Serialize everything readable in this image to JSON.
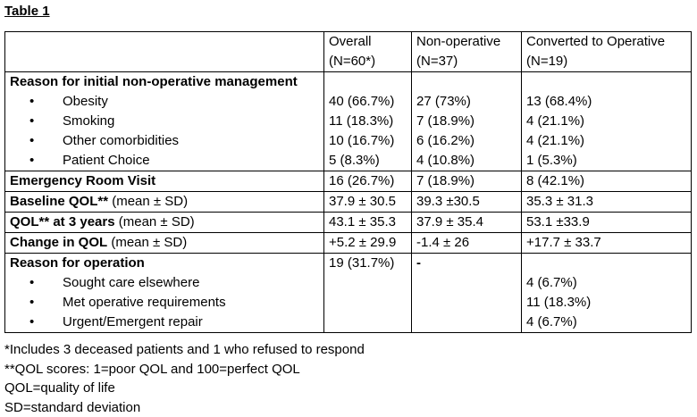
{
  "title": "Table 1",
  "header": {
    "c1": [
      "Overall",
      "(N=60*)"
    ],
    "c2": [
      "Non-operative",
      "(N=37)"
    ],
    "c3": [
      "Converted to Operative",
      "(N=19)"
    ]
  },
  "reason_initial": {
    "label": "Reason for initial non-operative management",
    "items": [
      {
        "label": "Obesity",
        "overall": "40 (66.7%)",
        "nonop": "27 (73%)",
        "conv": "13 (68.4%)"
      },
      {
        "label": "Smoking",
        "overall": "11 (18.3%)",
        "nonop": "7 (18.9%)",
        "conv": "4 (21.1%)"
      },
      {
        "label": "Other comorbidities",
        "overall": "10 (16.7%)",
        "nonop": "6 (16.2%)",
        "conv": "4 (21.1%)"
      },
      {
        "label": "Patient Choice",
        "overall": "5  (8.3%)",
        "nonop": "4 (10.8%)",
        "conv": "1 (5.3%)"
      }
    ]
  },
  "er_visit": {
    "label": "Emergency Room Visit",
    "overall": "16 (26.7%)",
    "nonop": "7 (18.9%)",
    "conv": "8 (42.1%)"
  },
  "baseline_qol": {
    "label_bold": "Baseline QOL**",
    "label_rest": " (mean ± SD)",
    "overall": "37.9 ± 30.5",
    "nonop": "39.3 ±30.5",
    "conv": "35.3 ± 31.3"
  },
  "qol_3y": {
    "label_bold": "QOL** at 3 years",
    "label_rest": " (mean ± SD)",
    "overall": "43.1 ± 35.3",
    "nonop": "37.9 ± 35.4",
    "conv": "53.1 ±33.9"
  },
  "change_qol": {
    "label_bold": "Change in QOL",
    "label_rest": " (mean ± SD)",
    "overall": "+5.2 ± 29.9",
    "nonop": "-1.4 ± 26",
    "conv": "+17.7 ± 33.7"
  },
  "reason_op": {
    "label": "Reason for operation",
    "overall": "19 (31.7%)",
    "nonop": "-",
    "items": [
      {
        "label": "Sought care elsewhere",
        "conv": "4  (6.7%)"
      },
      {
        "label": "Met operative requirements",
        "conv": "11 (18.3%)"
      },
      {
        "label": "Urgent/Emergent repair",
        "conv": "4  (6.7%)"
      }
    ]
  },
  "bullet": "•",
  "footnotes": [
    "*Includes 3 deceased patients and 1 who refused to respond",
    "**QOL scores:  1=poor QOL and 100=perfect QOL",
    "QOL=quality of life",
    "SD=standard deviation"
  ]
}
